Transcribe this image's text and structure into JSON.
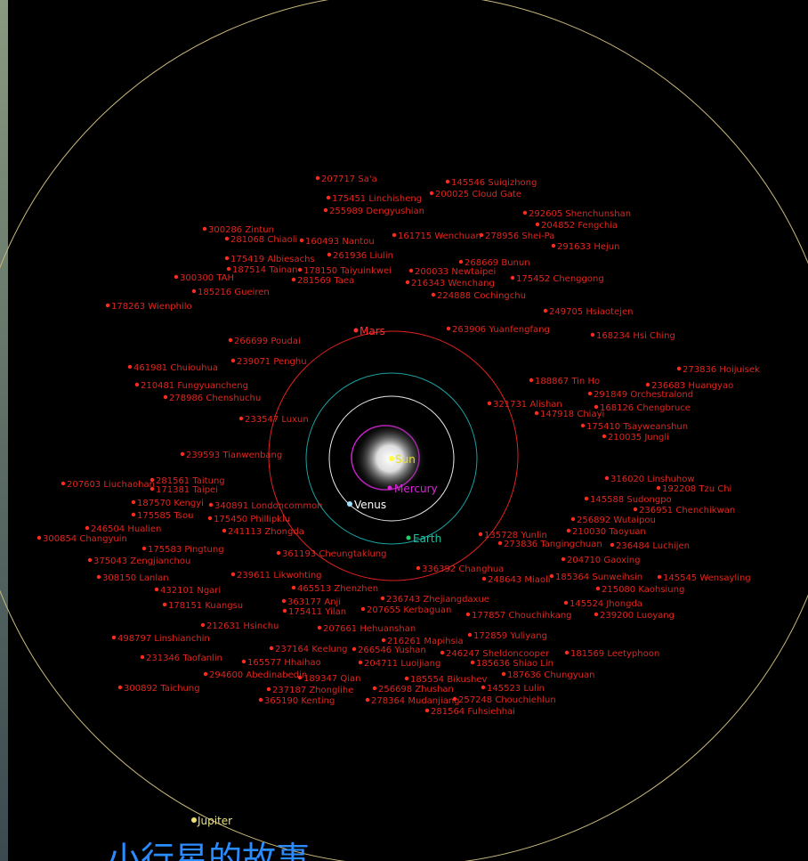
{
  "planets": {
    "sun": "Sun",
    "mercury": "Mercury",
    "venus": "Venus",
    "earth": "Earth",
    "mars": "Mars",
    "jupiter": "Jupiter"
  },
  "asteroids": [
    "207717 Sa'a",
    "145546 Suiqizhong",
    "200025 Cloud Gate",
    "175451 Linchisheng",
    "255989 Dengyushian",
    "292605 Shenchunshan",
    "204852 Fengchia",
    "300286 Zintun",
    "281068 Chiaoli",
    "160493 Nantou",
    "161715 Wenchuan",
    "278956 Shei-Pa",
    "291633 Hejun",
    "175419 Albiesachs",
    "261936 Liulin",
    "268669 Bunun",
    "187514 Tainan",
    "178150 Taiyuinkwei",
    "300300 TAH",
    "200033 Newtaipei",
    "216343 Wenchang",
    "175452 Chenggong",
    "281569 Taea",
    "185216 Gueiren",
    "224888 Cochingchu",
    "178263 Wienphilo",
    "249705 Hsiaotejen",
    "263906 Yuanfengfang",
    "168234 Hsi Ching",
    "266699 Poudai",
    "239071 Penghu",
    "461981 Chuiouhua",
    "273836 Hoijuisek",
    "188867 Tin Ho",
    "236683 Huangyao",
    "210481 Fungyuancheng",
    "278986 Chenshuchu",
    "291849 Orchestralond",
    "321731 Alishan",
    "168126 Chengbruce",
    "147918 Chiayi",
    "233547 Luxun",
    "175410 Tsayweanshun",
    "210035 Jungli",
    "239593 Tianwenbang",
    "316020 Linshuhow",
    "192208 Tzu Chi",
    "207603 Liuchaohan",
    "281561 Taitung",
    "171381 Taipei",
    "145588 Sudongpo",
    "187570 Kengyi",
    "340891 Londoncommon",
    "236951 Chenchikwan",
    "175585 Tsou",
    "175450 Phillipklu",
    "256892 Wutaipou",
    "246504 Hualien",
    "241113 Zhongda",
    "210030 Taoyuan",
    "300854 Changyuin",
    "135728 Yunlin",
    "273836 Tangingchuan",
    "236484 Luchijen",
    "175583 Pingtung",
    "361193 Cheungtaklung",
    "204710 Gaoxing",
    "375043 Zengjianchou",
    "336392 Changhua",
    "239611 Likwohting",
    "248643 Miaoli",
    "185364 Sunweihsin",
    "145545 Wensayling",
    "308150 Lanlan",
    "465513 Zhenzhen",
    "432101 Ngari",
    "215080 Kaohsiung",
    "363177 Anji",
    "236743 Zhejiangdaxue",
    "178151 Kuangsu",
    "175411 Yilan",
    "145524 Jhongda",
    "207655 Kerbaguan",
    "177857 Chouchihkang",
    "239200 Luoyang",
    "212631 Hsinchu",
    "207661 Hehuanshan",
    "498797 Linshianchin",
    "172859 Yuliyang",
    "216261 Mapihsia",
    "237164 Keelung",
    "266546 Yushan",
    "246247 Sheldoncooper",
    "181569 Leetyphoon",
    "231346 Taofanlin",
    "165577 Hhaihao",
    "204711 Luoijiang",
    "185636 Shiao Lin",
    "294600 Abedinabedin",
    "187636 Chungyuan",
    "189347 Qian",
    "185554 Bikushev",
    "300892 Taichung",
    "145523 Lulin",
    "237187 Zhonglihe",
    "256698 Zhushan",
    "365190 Kenting",
    "278364 Mudanjiang",
    "257248 Chouchiehlun",
    "281564 Fuhsiehhai"
  ],
  "title": "小行星的故事"
}
